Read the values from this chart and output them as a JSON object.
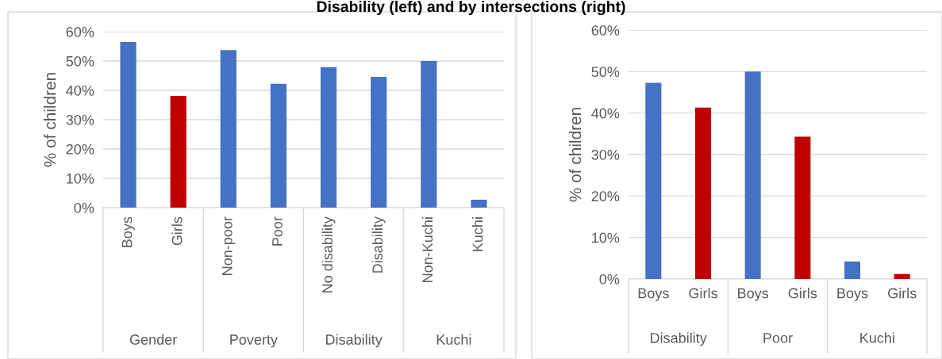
{
  "chart_data": [
    {
      "type": "bar",
      "title": "Disability (left) and by intersections (right)",
      "ylabel": "% of children",
      "categories": [
        "Boys",
        "Girls",
        "Non-poor",
        "Poor",
        "No disability",
        "Disability",
        "Non-Kuchi",
        "Kuchi"
      ],
      "values": [
        56.5,
        38.1,
        53.7,
        42.2,
        47.9,
        44.6,
        50.0,
        2.7
      ],
      "colors": [
        "#4472c4",
        "#c00000",
        "#4472c4",
        "#4472c4",
        "#4472c4",
        "#4472c4",
        "#4472c4",
        "#4472c4"
      ],
      "annotations": [
        "Gender",
        "Poverty",
        "Disability",
        "Kuchi"
      ],
      "ylim": [
        0,
        60
      ],
      "yticks": [
        {
          "value": 0,
          "label": "0%"
        },
        {
          "value": 10,
          "label": "10%"
        },
        {
          "value": 20,
          "label": "20%"
        },
        {
          "value": 30,
          "label": "30%"
        },
        {
          "value": 40,
          "label": "40%"
        },
        {
          "value": 50,
          "label": "50%"
        },
        {
          "value": 60,
          "label": "60%"
        }
      ],
      "grid": "y",
      "legend": false
    },
    {
      "type": "bar",
      "ylabel": "% of children",
      "categories": [
        "Boys",
        "Girls",
        "Boys",
        "Girls",
        "Boys",
        "Girls"
      ],
      "values": [
        47.3,
        41.3,
        50.0,
        34.3,
        4.2,
        1.2
      ],
      "colors": [
        "#4472c4",
        "#c00000",
        "#4472c4",
        "#c00000",
        "#4472c4",
        "#c00000"
      ],
      "annotations": [
        "Disability",
        "Poor",
        "Kuchi"
      ],
      "ylim": [
        0,
        60
      ],
      "yticks": [
        {
          "value": 0,
          "label": "0%"
        },
        {
          "value": 10,
          "label": "10%"
        },
        {
          "value": 20,
          "label": "20%"
        },
        {
          "value": 30,
          "label": "30%"
        },
        {
          "value": 40,
          "label": "40%"
        },
        {
          "value": 50,
          "label": "50%"
        },
        {
          "value": 60,
          "label": "60%"
        }
      ],
      "grid": "y",
      "legend": false
    }
  ]
}
